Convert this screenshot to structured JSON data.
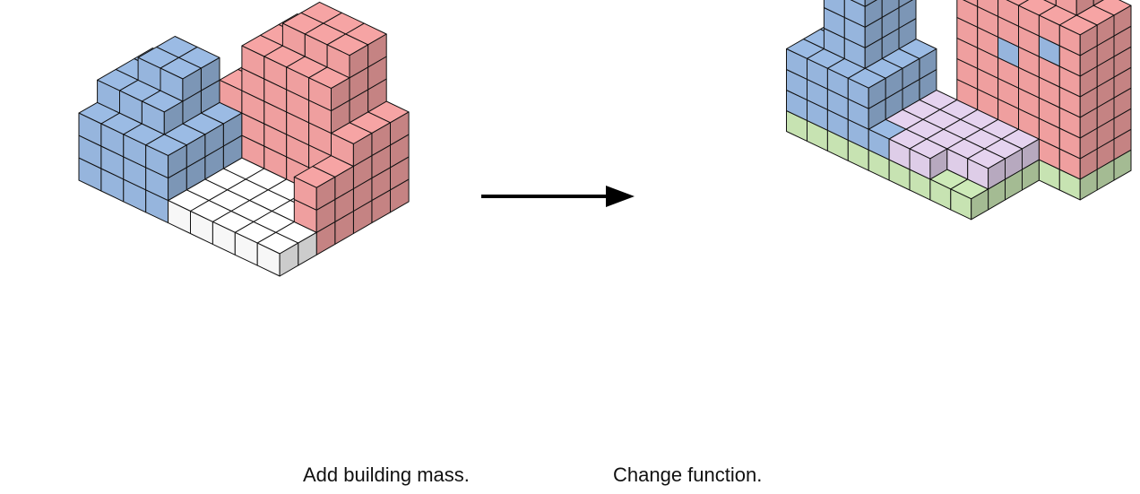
{
  "captions": {
    "left": "Add building mass.",
    "right": "Change function."
  },
  "colors": {
    "blue": "#9bbbe4",
    "red": "#f6a4a4",
    "white": "#ffffff",
    "purple": "#e5d3ef",
    "green": "#cdeab8",
    "arrow": "#000000",
    "edge": "#111111"
  },
  "icons": {
    "arrow": "arrow-right-icon"
  }
}
